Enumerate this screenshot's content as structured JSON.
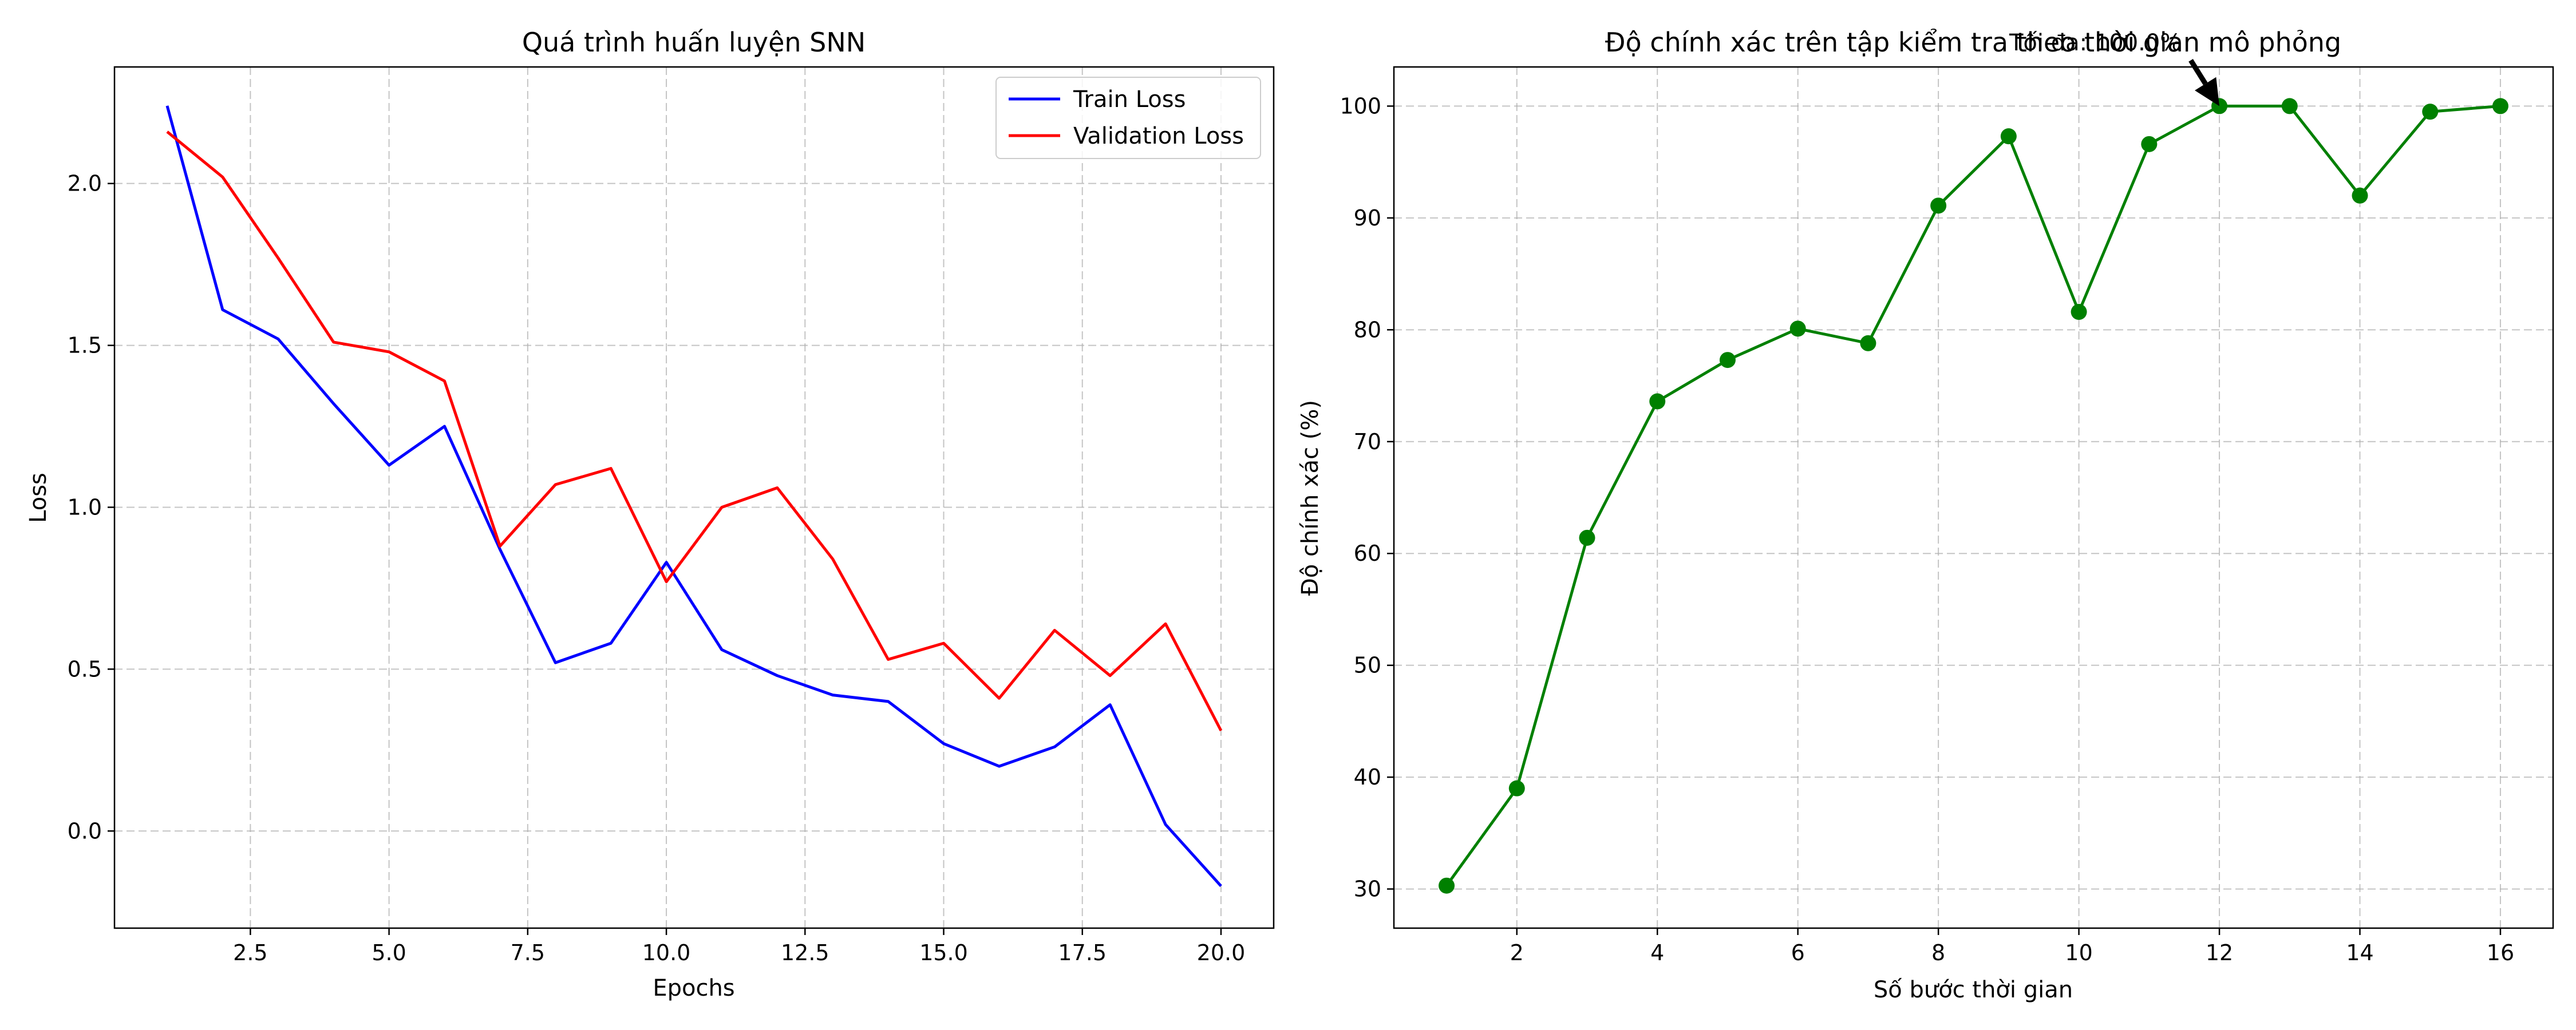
{
  "chart_data": [
    {
      "type": "line",
      "title": "Quá trình huấn luyện SNN",
      "xlabel": "Epochs",
      "ylabel": "Loss",
      "x": [
        1,
        2,
        3,
        4,
        5,
        6,
        7,
        8,
        9,
        10,
        11,
        12,
        13,
        14,
        15,
        16,
        17,
        18,
        19,
        20
      ],
      "xlim": [
        0.05,
        20.95
      ],
      "ylim": [
        -0.3,
        2.36
      ],
      "xticks": [
        2.5,
        5.0,
        7.5,
        10.0,
        12.5,
        15.0,
        17.5,
        20.0
      ],
      "xtick_labels": [
        "2.5",
        "5.0",
        "7.5",
        "10.0",
        "12.5",
        "15.0",
        "17.5",
        "20.0"
      ],
      "yticks": [
        0.0,
        0.5,
        1.0,
        1.5,
        2.0
      ],
      "ytick_labels": [
        "0.0",
        "0.5",
        "1.0",
        "1.5",
        "2.0"
      ],
      "grid": true,
      "legend_position": "top-right",
      "series": [
        {
          "name": "Train Loss",
          "color": "#0000ff",
          "marker": false,
          "values": [
            2.24,
            1.61,
            1.52,
            1.32,
            1.13,
            1.25,
            0.87,
            0.52,
            0.58,
            0.83,
            0.56,
            0.48,
            0.42,
            0.4,
            0.27,
            0.2,
            0.26,
            0.39,
            0.02,
            -0.17
          ]
        },
        {
          "name": "Validation Loss",
          "color": "#ff0000",
          "marker": false,
          "values": [
            2.16,
            2.02,
            1.77,
            1.51,
            1.48,
            1.39,
            0.88,
            1.07,
            1.12,
            0.77,
            1.0,
            1.06,
            0.84,
            0.53,
            0.58,
            0.41,
            0.62,
            0.48,
            0.64,
            0.31
          ]
        }
      ]
    },
    {
      "type": "line",
      "title": "Độ chính xác trên tập kiểm tra theo thời gian mô phỏng",
      "xlabel": "Số bước thời gian",
      "ylabel": "Độ chính xác (%)",
      "x": [
        1,
        2,
        3,
        4,
        5,
        6,
        7,
        8,
        9,
        10,
        11,
        12,
        13,
        14,
        15,
        16
      ],
      "xlim": [
        0.25,
        16.75
      ],
      "ylim": [
        26.5,
        103.5
      ],
      "xticks": [
        2,
        4,
        6,
        8,
        10,
        12,
        14,
        16
      ],
      "xtick_labels": [
        "2",
        "4",
        "6",
        "8",
        "10",
        "12",
        "14",
        "16"
      ],
      "yticks": [
        30,
        40,
        50,
        60,
        70,
        80,
        90,
        100
      ],
      "ytick_labels": [
        "30",
        "40",
        "50",
        "60",
        "70",
        "80",
        "90",
        "100"
      ],
      "grid": true,
      "series": [
        {
          "color": "#008000",
          "marker": true,
          "values": [
            30.3,
            39.0,
            61.4,
            73.6,
            77.3,
            80.1,
            78.8,
            91.1,
            97.3,
            81.6,
            96.6,
            100.0,
            100.0,
            92.0,
            99.5,
            100.0
          ]
        }
      ],
      "annotation": {
        "text": "Tối đa: 100.0%",
        "x": 12,
        "y": 100.0
      }
    }
  ]
}
